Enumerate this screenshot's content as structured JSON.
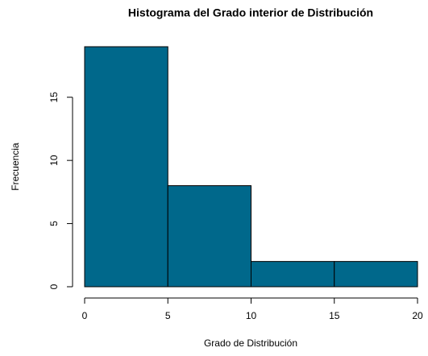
{
  "chart_data": {
    "type": "histogram",
    "title": "Histograma del Grado interior de Distribución",
    "xlabel": "Grado de Distribución",
    "ylabel": "Frecuencia",
    "bins": [
      0,
      5,
      10,
      15,
      20
    ],
    "counts": [
      19,
      8,
      2,
      2
    ],
    "color": "#00688B",
    "xlim": [
      0,
      20
    ],
    "xticks": [
      0,
      5,
      10,
      15,
      20
    ],
    "ylim": [
      0,
      19
    ],
    "yticks": [
      0,
      5,
      10,
      15
    ]
  }
}
